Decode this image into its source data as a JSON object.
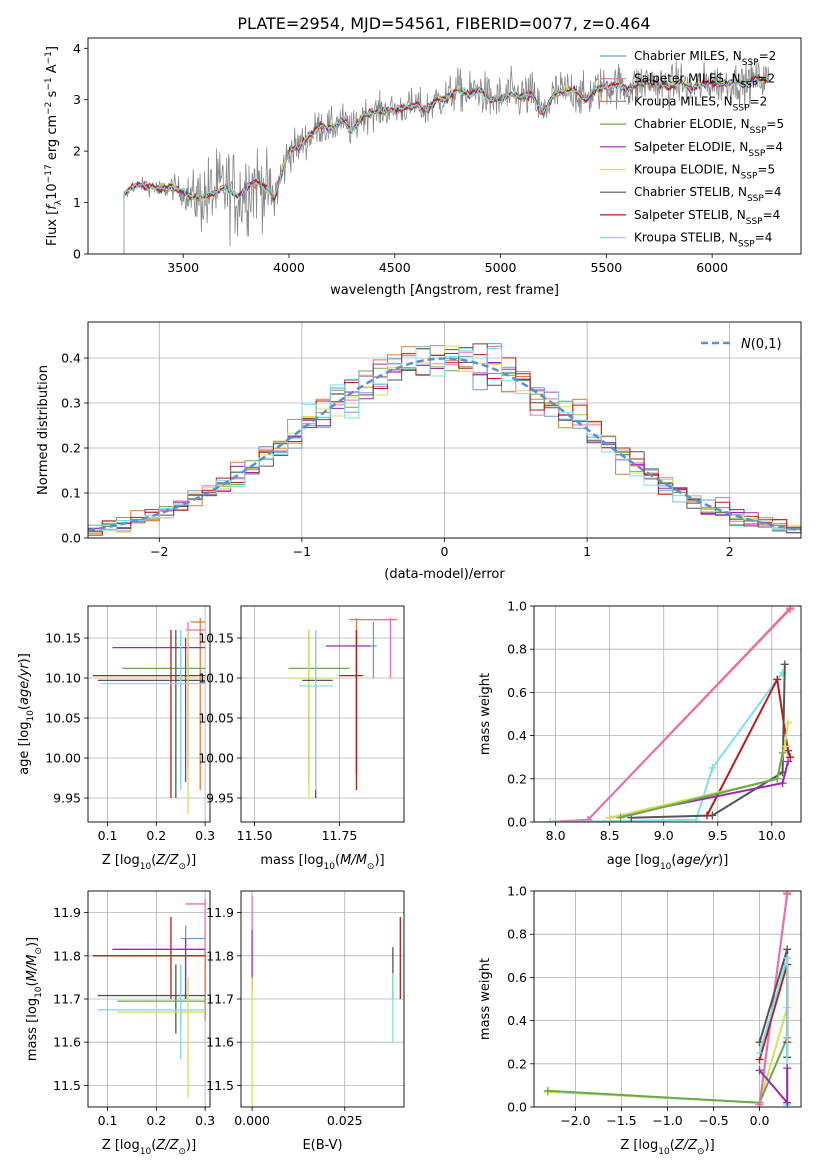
{
  "figure_title": "PLATE=2954, MJD=54561, FIBERID=0077, z=0.464",
  "colors": {
    "Chabrier MILES": "#6b9bd8",
    "Salpeter MILES": "#e86fb0",
    "Kroupa MILES": "#e07b39",
    "Chabrier ELODIE": "#6aa84f",
    "Salpeter ELODIE": "#9c27b0",
    "Kroupa ELODIE": "#d4e157",
    "Chabrier STELIB": "#555555",
    "Salpeter STELIB": "#b71c1c",
    "Kroupa STELIB": "#80deea",
    "observed": "#888888",
    "normal": "#5b8fd0"
  },
  "chart_data": [
    {
      "id": "spectrum",
      "type": "line",
      "xlabel": "wavelength [Angstrom, rest frame]",
      "ylabel": "Flux [fλ10⁻¹⁷ erg cm⁻² s⁻¹ A⁻¹]",
      "xlim": [
        3050,
        6420
      ],
      "ylim": [
        0,
        4.2
      ],
      "xticks": [
        3500,
        4000,
        4500,
        5000,
        5500,
        6000
      ],
      "yticks": [
        0,
        1,
        2,
        3,
        4
      ],
      "grid": false,
      "legend": "top-right",
      "legend_entries": [
        {
          "series": "Chabrier MILES",
          "text": "Chabrier MILES, N",
          "n": "2"
        },
        {
          "series": "Salpeter MILES",
          "text": "Salpeter MILES, N",
          "n": "2"
        },
        {
          "series": "Kroupa MILES",
          "text": "Kroupa MILES, N",
          "n": "2"
        },
        {
          "series": "Chabrier ELODIE",
          "text": "Chabrier ELODIE, N",
          "n": "5"
        },
        {
          "series": "Salpeter ELODIE",
          "text": "Salpeter ELODIE, N",
          "n": "4"
        },
        {
          "series": "Kroupa ELODIE",
          "text": "Kroupa ELODIE, N",
          "n": "5"
        },
        {
          "series": "Chabrier STELIB",
          "text": "Chabrier STELIB, N",
          "n": "4"
        },
        {
          "series": "Salpeter STELIB",
          "text": "Salpeter STELIB, N",
          "n": "4"
        },
        {
          "series": "Kroupa STELIB",
          "text": "Kroupa STELIB, N",
          "n": "4"
        }
      ],
      "legend_sub": "SSP",
      "model_curve": {
        "x": [
          3200,
          3230,
          3260,
          3300,
          3350,
          3400,
          3450,
          3500,
          3540,
          3600,
          3650,
          3700,
          3760,
          3800,
          3850,
          3900,
          3930,
          3960,
          4000,
          4050,
          4100,
          4150,
          4200,
          4250,
          4300,
          4350,
          4400,
          4450,
          4500,
          4550,
          4600,
          4650,
          4700,
          4750,
          4800,
          4850,
          4900,
          4950,
          5000,
          5050,
          5100,
          5150,
          5200,
          5250,
          5300,
          5350,
          5400,
          5450,
          5500,
          5550,
          5600,
          5650,
          5700,
          5750,
          5800,
          5850,
          5900,
          5950,
          6000,
          6050,
          6100,
          6150,
          6200
        ],
        "y": [
          1.0,
          1.2,
          1.3,
          1.35,
          1.3,
          1.25,
          1.3,
          1.2,
          1.1,
          1.1,
          1.2,
          1.3,
          1.1,
          1.3,
          1.4,
          1.25,
          1.05,
          1.5,
          2.0,
          2.1,
          2.3,
          2.5,
          2.45,
          2.6,
          2.4,
          2.7,
          2.75,
          2.8,
          2.8,
          2.85,
          2.9,
          2.8,
          3.0,
          3.05,
          3.2,
          3.1,
          3.2,
          3.0,
          3.0,
          3.1,
          3.05,
          3.1,
          2.7,
          3.1,
          3.15,
          3.2,
          3.0,
          3.2,
          3.25,
          3.3,
          3.2,
          3.3,
          3.35,
          3.3,
          3.25,
          3.35,
          3.2,
          3.3,
          3.35,
          3.3,
          3.35,
          3.3,
          3.4
        ]
      },
      "observed_noise_amplitude": [
        [
          3220,
          0.1
        ],
        [
          3500,
          0.35
        ],
        [
          3600,
          1.0
        ],
        [
          3800,
          1.2
        ],
        [
          4000,
          0.5
        ],
        [
          4500,
          0.4
        ],
        [
          5000,
          0.6
        ],
        [
          6000,
          0.5
        ]
      ]
    },
    {
      "id": "residuals",
      "type": "line",
      "xlabel": "(data-model)/error",
      "ylabel": "Normed distribution",
      "xlim": [
        -2.5,
        2.5
      ],
      "ylim": [
        0,
        0.48
      ],
      "xticks": [
        -2,
        -1,
        0,
        1,
        2
      ],
      "yticks": [
        0.0,
        0.1,
        0.2,
        0.3,
        0.4
      ],
      "grid": true,
      "legend": "top-right",
      "normal_label": "N(0,1)",
      "bin_width": 0.1
    },
    {
      "id": "age_vs_Z",
      "type": "scatter",
      "xlabel": "Z [log10(Z/Z⊙)]",
      "ylabel": "age  [log10(age/yr)]",
      "xlim": [
        0.06,
        0.31
      ],
      "ylim": [
        9.92,
        10.19
      ],
      "xticks": [
        0.1,
        0.2,
        0.3
      ],
      "yticks": [
        9.95,
        10.0,
        10.05,
        10.1,
        10.15
      ],
      "grid": true,
      "points": [
        {
          "series": "Kroupa MILES",
          "x": 0.29,
          "y": 10.17,
          "xerr": [
            0.27,
            0.3
          ],
          "yerr": [
            9.96,
            10.175
          ]
        },
        {
          "series": "Salpeter MILES",
          "x": 0.265,
          "y": 10.16,
          "xerr": [
            0.26,
            0.3
          ],
          "yerr": [
            9.99,
            10.17
          ]
        },
        {
          "series": "Salpeter ELODIE",
          "x": 0.26,
          "y": 10.138,
          "xerr": [
            0.11,
            0.3
          ],
          "yerr": [
            9.97,
            10.15
          ]
        },
        {
          "series": "Chabrier ELODIE",
          "x": 0.25,
          "y": 10.112,
          "xerr": [
            0.13,
            0.3
          ],
          "yerr": [
            9.97,
            10.16
          ]
        },
        {
          "series": "Salpeter STELIB",
          "x": 0.23,
          "y": 10.103,
          "xerr": [
            0.07,
            0.3
          ],
          "yerr": [
            9.95,
            10.16
          ]
        },
        {
          "series": "Chabrier STELIB",
          "x": 0.24,
          "y": 10.097,
          "xerr": [
            0.08,
            0.3
          ],
          "yerr": [
            9.95,
            10.16
          ]
        },
        {
          "series": "Kroupa STELIB",
          "x": 0.25,
          "y": 10.093,
          "xerr": [
            0.085,
            0.3
          ],
          "yerr": [
            9.96,
            10.16
          ]
        },
        {
          "series": "Kroupa ELODIE",
          "x": 0.265,
          "y": 10.1,
          "xerr": [
            0.26,
            0.27
          ],
          "yerr": [
            9.93,
            10.16
          ]
        }
      ]
    },
    {
      "id": "age_vs_mass",
      "type": "scatter",
      "xlabel": "mass [log10(M/M⊙)]",
      "ylabel": "",
      "xlim": [
        11.46,
        11.94
      ],
      "ylim": [
        9.92,
        10.19
      ],
      "xticks": [
        11.5,
        11.75
      ],
      "yticks": [
        9.95,
        10.0,
        10.05,
        10.1,
        10.15
      ],
      "grid": true,
      "points": [
        {
          "series": "Kroupa MILES",
          "x": 11.8,
          "y": 10.173,
          "xerr": [
            11.78,
            11.92
          ],
          "yerr": [
            9.98,
            10.175
          ]
        },
        {
          "series": "Salpeter MILES",
          "x": 11.9,
          "y": 10.173,
          "xerr": [
            11.83,
            11.91
          ],
          "yerr": [
            10.1,
            10.175
          ]
        },
        {
          "series": "Chabrier MILES",
          "x": 11.85,
          "y": 10.14,
          "xerr": [
            11.84,
            11.86
          ],
          "yerr": [
            10.1,
            10.17
          ]
        },
        {
          "series": "Salpeter ELODIE",
          "x": 11.8,
          "y": 10.14,
          "xerr": [
            11.71,
            11.84
          ],
          "yerr": [
            9.98,
            10.16
          ]
        },
        {
          "series": "Chabrier ELODIE",
          "x": 11.66,
          "y": 10.112,
          "xerr": [
            11.6,
            11.78
          ],
          "yerr": [
            9.97,
            10.16
          ]
        },
        {
          "series": "Kroupa ELODIE",
          "x": 11.66,
          "y": 10.1,
          "xerr": [
            11.6,
            11.73
          ],
          "yerr": [
            9.95,
            10.16
          ]
        },
        {
          "series": "Salpeter STELIB",
          "x": 11.8,
          "y": 10.103,
          "xerr": [
            11.75,
            11.82
          ],
          "yerr": [
            9.96,
            10.16
          ]
        },
        {
          "series": "Chabrier STELIB",
          "x": 11.68,
          "y": 10.097,
          "xerr": [
            11.64,
            11.73
          ],
          "yerr": [
            9.95,
            10.16
          ]
        },
        {
          "series": "Kroupa STELIB",
          "x": 11.68,
          "y": 10.09,
          "xerr": [
            11.63,
            11.73
          ],
          "yerr": [
            9.96,
            10.16
          ]
        }
      ]
    },
    {
      "id": "weight_vs_age",
      "type": "line",
      "xlabel": "age  [log10(age/yr)]",
      "ylabel": "mass weight",
      "xlim": [
        7.8,
        10.27
      ],
      "ylim": [
        0,
        1.0
      ],
      "xticks": [
        8.0,
        8.5,
        9.0,
        9.5,
        10.0
      ],
      "yticks": [
        0.0,
        0.2,
        0.4,
        0.6,
        0.8,
        1.0
      ],
      "grid": true,
      "series": [
        {
          "name": "Kroupa MILES",
          "x": [
            7.95,
            8.3,
            10.17
          ],
          "y": [
            0.0,
            0.01,
            0.99
          ]
        },
        {
          "name": "Salpeter MILES",
          "x": [
            7.95,
            8.3,
            10.17
          ],
          "y": [
            0.0,
            0.01,
            0.985
          ]
        },
        {
          "name": "Kroupa STELIB",
          "x": [
            7.95,
            9.3,
            9.45,
            10.05,
            10.1
          ],
          "y": [
            0.0,
            0.01,
            0.25,
            0.66,
            0.69
          ]
        },
        {
          "name": "Chabrier STELIB",
          "x": [
            8.7,
            9.45,
            10.1,
            10.12
          ],
          "y": [
            0.02,
            0.03,
            0.23,
            0.73
          ]
        },
        {
          "name": "Salpeter STELIB",
          "x": [
            9.4,
            10.05,
            10.15,
            10.17
          ],
          "y": [
            0.03,
            0.66,
            0.33,
            0.3
          ]
        },
        {
          "name": "Salpeter ELODIE",
          "x": [
            8.5,
            10.1,
            10.15
          ],
          "y": [
            0.02,
            0.18,
            0.28
          ]
        },
        {
          "name": "Kroupa ELODIE",
          "x": [
            8.5,
            10.05,
            10.12,
            10.15
          ],
          "y": [
            0.02,
            0.2,
            0.35,
            0.46
          ]
        },
        {
          "name": "Chabrier ELODIE",
          "x": [
            8.6,
            10.05,
            10.1
          ],
          "y": [
            0.02,
            0.2,
            0.32
          ]
        }
      ]
    },
    {
      "id": "mass_vs_Z",
      "type": "scatter",
      "xlabel": "Z [log10(Z/Z⊙)]",
      "ylabel": "mass [log10(M/M⊙)]",
      "xlim": [
        0.06,
        0.31
      ],
      "ylim": [
        11.45,
        11.95
      ],
      "xticks": [
        0.1,
        0.2,
        0.3
      ],
      "yticks": [
        11.5,
        11.6,
        11.7,
        11.8,
        11.9
      ],
      "grid": true,
      "points": [
        {
          "series": "Salpeter MILES",
          "x": 0.3,
          "y": 11.92,
          "xerr": [
            0.26,
            0.3
          ],
          "yerr": [
            11.7,
            11.93
          ]
        },
        {
          "series": "Chabrier MILES",
          "x": 0.26,
          "y": 11.84,
          "xerr": [
            0.25,
            0.3
          ],
          "yerr": [
            11.7,
            11.87
          ]
        },
        {
          "series": "Salpeter ELODIE",
          "x": 0.26,
          "y": 11.815,
          "xerr": [
            0.11,
            0.3
          ],
          "yerr": [
            11.7,
            11.84
          ]
        },
        {
          "series": "Kroupa MILES",
          "x": 0.3,
          "y": 11.8,
          "xerr": [
            0.07,
            0.3
          ],
          "yerr": [
            11.65,
            11.81
          ]
        },
        {
          "series": "Salpeter STELIB",
          "x": 0.23,
          "y": 11.8,
          "xerr": [
            0.07,
            0.3
          ],
          "yerr": [
            11.7,
            11.89
          ]
        },
        {
          "series": "Chabrier STELIB",
          "x": 0.24,
          "y": 11.708,
          "xerr": [
            0.08,
            0.3
          ],
          "yerr": [
            11.62,
            11.78
          ]
        },
        {
          "series": "Chabrier ELODIE",
          "x": 0.25,
          "y": 11.695,
          "xerr": [
            0.12,
            0.3
          ],
          "yerr": [
            11.63,
            11.78
          ]
        },
        {
          "series": "Kroupa STELIB",
          "x": 0.25,
          "y": 11.675,
          "xerr": [
            0.08,
            0.3
          ],
          "yerr": [
            11.56,
            11.78
          ]
        },
        {
          "series": "Kroupa ELODIE",
          "x": 0.265,
          "y": 11.67,
          "xerr": [
            0.12,
            0.3
          ],
          "yerr": [
            11.47,
            11.75
          ]
        }
      ]
    },
    {
      "id": "mass_vs_ebv",
      "type": "scatter",
      "xlabel": "E(B-V)",
      "ylabel": "",
      "xlim": [
        -0.003,
        0.041
      ],
      "ylim": [
        11.45,
        11.95
      ],
      "xticks": [
        0.0,
        0.025
      ],
      "yticks": [
        11.5,
        11.6,
        11.7,
        11.8,
        11.9
      ],
      "grid": true,
      "points": [
        {
          "series": "Salpeter MILES",
          "x": 0.0,
          "y": 11.92,
          "yerr": [
            11.86,
            11.94
          ]
        },
        {
          "series": "Salpeter ELODIE",
          "x": 0.0,
          "y": 11.8,
          "yerr": [
            11.72,
            11.86
          ]
        },
        {
          "series": "Kroupa ELODIE",
          "x": 0.0,
          "y": 11.67,
          "yerr": [
            11.45,
            11.75
          ]
        },
        {
          "series": "Chabrier STELIB",
          "x": 0.038,
          "y": 11.76,
          "yerr": [
            11.7,
            11.82
          ]
        },
        {
          "series": "Salpeter STELIB",
          "x": 0.04,
          "y": 11.8,
          "yerr": [
            11.7,
            11.89
          ]
        },
        {
          "series": "Kroupa STELIB",
          "x": 0.038,
          "y": 11.675,
          "yerr": [
            11.6,
            11.76
          ]
        }
      ]
    },
    {
      "id": "weight_vs_Z",
      "type": "line",
      "xlabel": "Z [log10(Z/Z⊙)]",
      "ylabel": "mass weight",
      "xlim": [
        -2.45,
        0.45
      ],
      "ylim": [
        0,
        1.0
      ],
      "xticks": [
        -2.0,
        -1.5,
        -1.0,
        -0.5,
        0.0
      ],
      "yticks": [
        0.0,
        0.2,
        0.4,
        0.6,
        0.8,
        1.0
      ],
      "grid": true,
      "series": [
        {
          "name": "Kroupa ELODIE",
          "x": [
            -2.3,
            0.0,
            0.3
          ],
          "y": [
            0.07,
            0.02,
            0.46
          ]
        },
        {
          "name": "Chabrier ELODIE",
          "x": [
            -2.3,
            0.0,
            0.3
          ],
          "y": [
            0.075,
            0.02,
            0.32
          ]
        },
        {
          "name": "Kroupa MILES",
          "x": [
            0.0,
            0.3
          ],
          "y": [
            0.01,
            0.99
          ]
        },
        {
          "name": "Salpeter MILES",
          "x": [
            0.0,
            0.3
          ],
          "y": [
            0.01,
            0.985
          ]
        },
        {
          "name": "Chabrier STELIB",
          "x": [
            0.0,
            0.3,
            0.3
          ],
          "y": [
            0.3,
            0.73,
            0.23
          ]
        },
        {
          "name": "Salpeter STELIB",
          "x": [
            0.0,
            0.3,
            0.3
          ],
          "y": [
            0.22,
            0.66,
            0.3
          ]
        },
        {
          "name": "Kroupa STELIB",
          "x": [
            0.0,
            0.3,
            0.3
          ],
          "y": [
            0.25,
            0.69,
            0.01
          ]
        },
        {
          "name": "Salpeter ELODIE",
          "x": [
            0.0,
            0.3,
            0.3
          ],
          "y": [
            0.17,
            0.02,
            0.18
          ]
        }
      ]
    }
  ]
}
